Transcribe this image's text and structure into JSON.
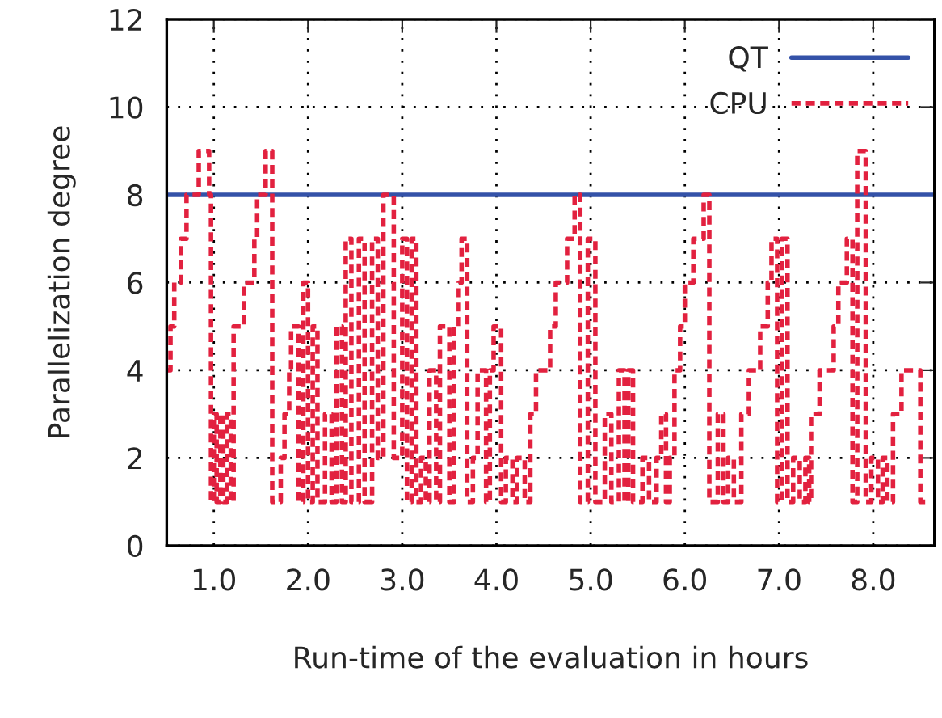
{
  "chart_data": {
    "type": "step",
    "xlabel": "Run-time of the evaluation in hours",
    "ylabel": "Parallelization degree",
    "xlim": [
      0.5,
      8.65
    ],
    "ylim": [
      0,
      12
    ],
    "xticks": [
      {
        "value": 1,
        "label": "1.0"
      },
      {
        "value": 2,
        "label": "2.0"
      },
      {
        "value": 3,
        "label": "3.0"
      },
      {
        "value": 4,
        "label": "4.0"
      },
      {
        "value": 5,
        "label": "5.0"
      },
      {
        "value": 6,
        "label": "6.0"
      },
      {
        "value": 7,
        "label": "7.0"
      },
      {
        "value": 8,
        "label": "8.0"
      }
    ],
    "yticks": [
      0,
      2,
      4,
      6,
      8,
      10,
      12
    ],
    "grid": true,
    "legend": "top right",
    "series": [
      {
        "name": "QT",
        "type": "line",
        "color": "#3452a8",
        "line_style": "solid",
        "x": [
          0.5,
          8.65
        ],
        "values": [
          8,
          8
        ]
      },
      {
        "name": "CPU",
        "color": "#e2213f",
        "line_style": "dashed",
        "x": [
          0.5,
          0.54,
          0.58,
          0.65,
          0.71,
          0.84,
          0.95,
          0.97,
          1.0,
          1.03,
          1.07,
          1.1,
          1.14,
          1.18,
          1.21,
          1.32,
          1.43,
          1.46,
          1.55,
          1.62,
          1.71,
          1.75,
          1.8,
          1.82,
          1.9,
          1.95,
          2.0,
          2.05,
          2.1,
          2.18,
          2.25,
          2.3,
          2.36,
          2.4,
          2.46,
          2.54,
          2.6,
          2.68,
          2.74,
          2.8,
          2.91,
          3.0,
          3.05,
          3.1,
          3.15,
          3.2,
          3.25,
          3.29,
          3.36,
          3.4,
          3.5,
          3.55,
          3.6,
          3.63,
          3.69,
          3.75,
          3.8,
          3.89,
          3.93,
          3.97,
          4.05,
          4.1,
          4.17,
          4.22,
          4.3,
          4.36,
          4.42,
          4.57,
          4.63,
          4.75,
          4.83,
          4.89,
          4.97,
          5.05,
          5.15,
          5.22,
          5.3,
          5.36,
          5.4,
          5.45,
          5.55,
          5.62,
          5.7,
          5.75,
          5.8,
          5.84,
          5.89,
          5.95,
          6.0,
          6.09,
          6.2,
          6.26,
          6.35,
          6.41,
          6.46,
          6.52,
          6.6,
          6.68,
          6.8,
          6.88,
          6.92,
          6.98,
          7.03,
          7.09,
          7.15,
          7.22,
          7.28,
          7.32,
          7.34,
          7.43,
          7.58,
          7.63,
          7.72,
          7.78,
          7.83,
          7.92,
          7.98,
          8.05,
          8.1,
          8.15,
          8.21,
          8.3,
          8.5,
          8.6
        ],
        "values": [
          4,
          5,
          6,
          7,
          8,
          9,
          8,
          1,
          3,
          1,
          3,
          1,
          3,
          1,
          5,
          6,
          7,
          8,
          9,
          1,
          2,
          3,
          4,
          5,
          1,
          6,
          1,
          5,
          1,
          3,
          1,
          5,
          1,
          7,
          1,
          7,
          1,
          7,
          2,
          8,
          2,
          7,
          1,
          7,
          1,
          2,
          1,
          4,
          1,
          5,
          1,
          5,
          6,
          7,
          1,
          2,
          4,
          1,
          4,
          5,
          1,
          2,
          1,
          2,
          1,
          3,
          4,
          5,
          6,
          7,
          8,
          1,
          7,
          1,
          3,
          1,
          4,
          1,
          4,
          1,
          2,
          1,
          2,
          3,
          1,
          2,
          4,
          5,
          6,
          7,
          8,
          1,
          3,
          1,
          2,
          1,
          3,
          4,
          5,
          6,
          7,
          1,
          7,
          1,
          2,
          1,
          2,
          1,
          3,
          4,
          5,
          6,
          7,
          1,
          9,
          1,
          2,
          1,
          2,
          1,
          3,
          4,
          1,
          1
        ]
      }
    ]
  }
}
